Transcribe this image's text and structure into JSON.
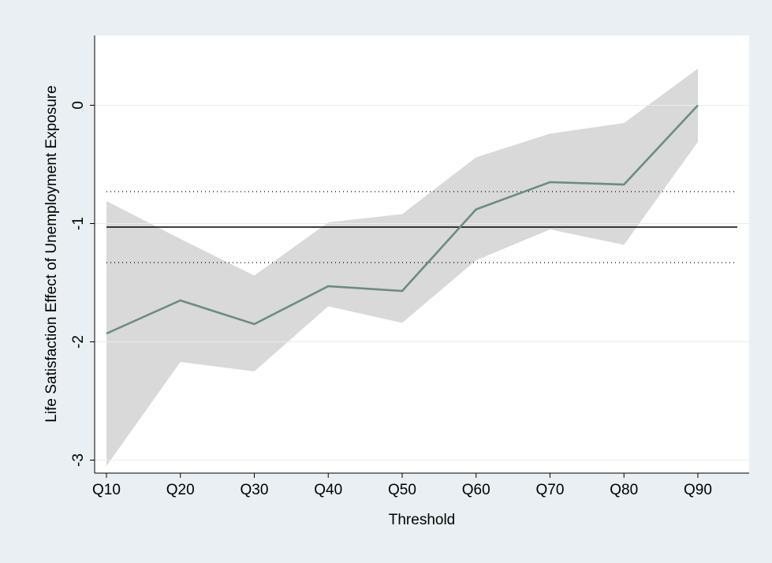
{
  "chart_data": {
    "type": "line",
    "x_label": "Threshold",
    "y_label": "Life Satisfaction Effect of Unemployment Exposure",
    "categories": [
      "Q10",
      "Q20",
      "Q30",
      "Q40",
      "Q50",
      "Q60",
      "Q70",
      "Q80",
      "Q90"
    ],
    "values": [
      -1.93,
      -1.65,
      -1.85,
      -1.53,
      -1.57,
      -0.88,
      -0.65,
      -0.67,
      0
    ],
    "ci_lower": [
      -3.05,
      -2.17,
      -2.25,
      -1.7,
      -1.84,
      -1.31,
      -1.05,
      -1.18,
      -0.31
    ],
    "ci_upper": [
      -0.81,
      -1.13,
      -1.44,
      -0.99,
      -0.92,
      -0.44,
      -0.24,
      -0.15,
      0.31
    ],
    "color": "#6a8d81",
    "band_color": "#d9d9d9",
    "hlines": [
      {
        "value": -1.03,
        "style": "solid"
      },
      {
        "value": -0.73,
        "style": "dotted"
      },
      {
        "value": -1.33,
        "style": "dotted"
      }
    ],
    "ylim": [
      -3.11,
      0.59
    ],
    "yticks": [
      -3,
      -2,
      -1,
      0
    ],
    "grid": true
  }
}
